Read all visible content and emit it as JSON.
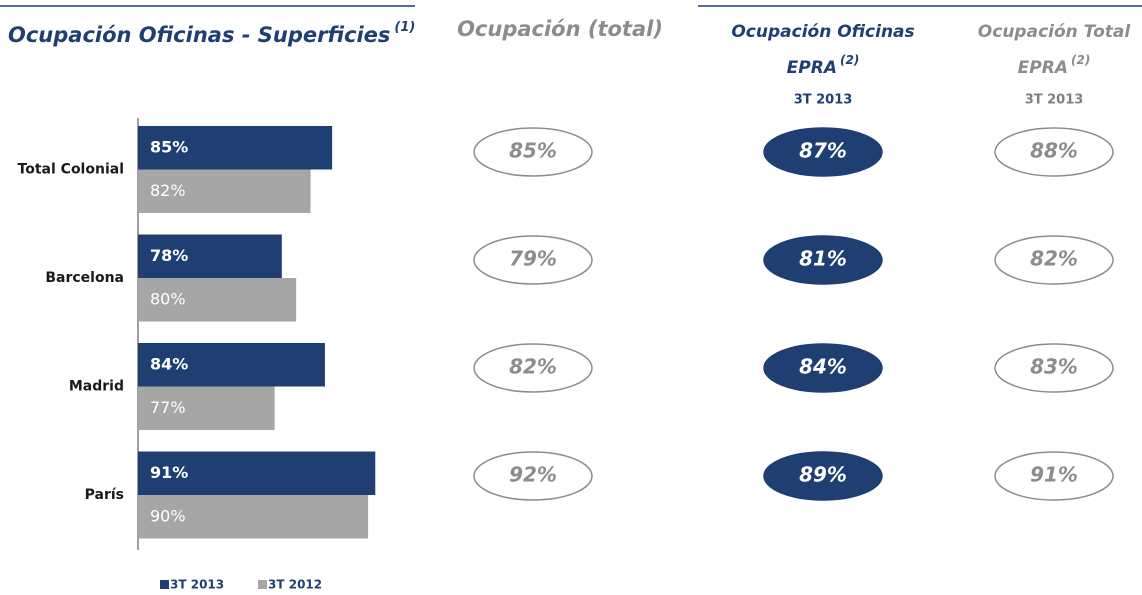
{
  "chart_data": {
    "type": "bar",
    "orientation": "horizontal",
    "title": "Ocupación Oficinas - Superficies",
    "title_note": "(1)",
    "categories": [
      "Total Colonial",
      "Barcelona",
      "Madrid",
      "París"
    ],
    "series": [
      {
        "name": "3T 2013",
        "color": "#1f3f73",
        "values": [
          85,
          78,
          84,
          91
        ],
        "value_labels": [
          "85%",
          "78%",
          "84%",
          "91%"
        ]
      },
      {
        "name": "3T 2012",
        "color": "#a6a6a6",
        "values": [
          82,
          80,
          77,
          90
        ],
        "value_labels": [
          "82%",
          "80%",
          "77%",
          "90%"
        ]
      }
    ],
    "xlim": [
      58,
      100
    ],
    "legend": "bottom-left"
  },
  "panels": [
    {
      "title": "Ocupación (total)",
      "title_color": "#8c8c8c",
      "filled": false,
      "color": "#8c8c8c",
      "values": [
        85,
        79,
        82,
        92
      ],
      "value_labels": [
        "85%",
        "79%",
        "82%",
        "92%"
      ]
    },
    {
      "title": "Ocupación Oficinas",
      "title2": "EPRA",
      "note": "(2)",
      "subtitle": "3T 2013",
      "title_color": "#1f3f73",
      "filled": true,
      "color": "#1f3f73",
      "values": [
        87,
        81,
        84,
        89
      ],
      "value_labels": [
        "87%",
        "81%",
        "84%",
        "89%"
      ]
    },
    {
      "title": "Ocupación Total",
      "title2": "EPRA",
      "note": "(2)",
      "subtitle": "3T 2013",
      "title_color": "#8c8c8c",
      "filled": false,
      "color": "#8c8c8c",
      "values": [
        88,
        82,
        83,
        91
      ],
      "value_labels": [
        "88%",
        "82%",
        "83%",
        "91%"
      ]
    }
  ]
}
